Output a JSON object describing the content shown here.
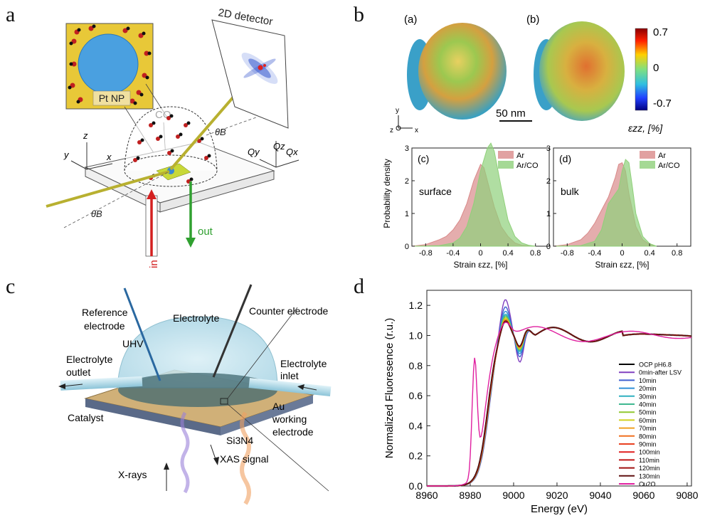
{
  "panels": {
    "a": {
      "letter": "a",
      "labels": {
        "detector": "2D detector",
        "pt_np": "Pt NP",
        "co": "CO",
        "in": "in",
        "out": "out",
        "theta_b": "θB",
        "y": "y",
        "z": "z",
        "x": "x",
        "qy": "Qy",
        "qz": "Qz",
        "qx": "Qx"
      }
    },
    "b": {
      "letter": "b",
      "sub_a": "(a)",
      "sub_b": "(b)",
      "colorbar": {
        "max": "0.7",
        "mid": "0",
        "min": "-0.7",
        "label": "εzz, [%]"
      },
      "scale_bar": "50 nm",
      "axes": {
        "y": "y",
        "z": "z",
        "x": "x"
      },
      "ylabel": "Probability density",
      "xlabel": "Strain εzz, [%]"
    },
    "c": {
      "letter": "c",
      "labels": {
        "reference": "Reference",
        "electrode": "electrode",
        "electrolyte": "Electrolyte",
        "counter": "Counter electrode",
        "uhv": "UHV",
        "electrolyte_outlet_1": "Electrolyte",
        "electrolyte_outlet_2": "outlet",
        "electrolyte_inlet_1": "Electrolyte",
        "electrolyte_inlet_2": "inlet",
        "catalyst": "Catalyst",
        "au_1": "Au",
        "au_2": "working",
        "au_3": "electrode",
        "si3n4": "Si3N4",
        "xrays": "X-rays",
        "xas": "XAS signal"
      }
    },
    "d": {
      "letter": "d"
    }
  },
  "colors": {
    "ar": "#d98a8a",
    "arco": "#8fd07a",
    "beam": "#b8b030",
    "in_arrow": "#d42020",
    "out_arrow": "#30a030"
  },
  "chart_data": [
    {
      "type": "area",
      "panel": "b(c)",
      "subtitle": "(c)",
      "annotation": "surface",
      "xlabel": "Strain εzz, [%]",
      "ylabel": "Probability density",
      "xlim": [
        -1.0,
        1.0
      ],
      "ylim": [
        0,
        3
      ],
      "xticks": [
        -0.8,
        -0.4,
        0,
        0.4,
        0.8
      ],
      "xtick_labels": [
        "-0.8",
        "-0.4",
        "0",
        "0.4",
        "0.8"
      ],
      "yticks": [
        0,
        1,
        2,
        3
      ],
      "legend": "top-right",
      "series": [
        {
          "name": "Ar",
          "color": "#d98a8a",
          "x": [
            -1.0,
            -0.8,
            -0.6,
            -0.5,
            -0.4,
            -0.3,
            -0.2,
            -0.1,
            0.0,
            0.05,
            0.1,
            0.2,
            0.3,
            0.4,
            0.5,
            0.6,
            0.8
          ],
          "y": [
            0,
            0.05,
            0.2,
            0.3,
            0.5,
            0.8,
            1.3,
            2.0,
            2.5,
            2.4,
            2.0,
            1.2,
            0.6,
            0.3,
            0.1,
            0.03,
            0
          ]
        },
        {
          "name": "Ar/CO",
          "color": "#8fd07a",
          "x": [
            -1.0,
            -0.6,
            -0.4,
            -0.3,
            -0.2,
            -0.1,
            0.0,
            0.1,
            0.15,
            0.2,
            0.3,
            0.4,
            0.5,
            0.6,
            0.7,
            0.8
          ],
          "y": [
            0,
            0.02,
            0.1,
            0.25,
            0.6,
            1.3,
            2.3,
            3.0,
            3.15,
            2.9,
            1.8,
            0.8,
            0.3,
            0.1,
            0.03,
            0
          ]
        }
      ]
    },
    {
      "type": "area",
      "panel": "b(d)",
      "subtitle": "(d)",
      "annotation": "bulk",
      "xlabel": "Strain εzz, [%]",
      "xlim": [
        -1.0,
        1.0
      ],
      "ylim": [
        0,
        3
      ],
      "xticks": [
        -0.8,
        -0.4,
        0,
        0.4,
        0.8
      ],
      "xtick_labels": [
        "-0.8",
        "-0.4",
        "0",
        "0.4",
        "0.8"
      ],
      "yticks": [
        0,
        1,
        2,
        3
      ],
      "legend": "top-right",
      "series": [
        {
          "name": "Ar",
          "color": "#d98a8a",
          "x": [
            -1.0,
            -0.8,
            -0.6,
            -0.5,
            -0.4,
            -0.3,
            -0.2,
            -0.1,
            -0.05,
            0.0,
            0.05,
            0.1,
            0.2,
            0.3,
            0.4,
            0.5
          ],
          "y": [
            0,
            0.05,
            0.2,
            0.4,
            0.7,
            1.1,
            1.5,
            2.1,
            2.5,
            2.55,
            2.3,
            1.6,
            0.6,
            0.2,
            0.05,
            0
          ]
        },
        {
          "name": "Ar/CO",
          "color": "#8fd07a",
          "x": [
            -1.0,
            -0.6,
            -0.4,
            -0.3,
            -0.2,
            -0.1,
            -0.05,
            0.0,
            0.05,
            0.1,
            0.15,
            0.2,
            0.3,
            0.4,
            0.5
          ],
          "y": [
            0,
            0.02,
            0.15,
            0.5,
            1.3,
            1.6,
            1.75,
            2.3,
            2.65,
            2.55,
            1.8,
            1.0,
            0.3,
            0.08,
            0
          ]
        }
      ]
    },
    {
      "type": "line",
      "panel": "d",
      "xlabel": "Energy (eV)",
      "ylabel": "Normalized Fluoresence (r.u.)",
      "xlim": [
        8960,
        9082
      ],
      "ylim": [
        0,
        1.3
      ],
      "xticks": [
        8960,
        8980,
        9000,
        9020,
        9040,
        9060,
        9080
      ],
      "yticks": [
        0.0,
        0.2,
        0.4,
        0.6,
        0.8,
        1.0,
        1.2
      ],
      "ytick_labels": [
        "0.0",
        "0.2",
        "0.4",
        "0.6",
        "0.8",
        "1.0",
        "1.2"
      ],
      "legend": "bottom-right",
      "series": [
        {
          "name": "OCP pH6.8",
          "color": "#000000",
          "peak": 1.12,
          "edge_shift": 0
        },
        {
          "name": "0min-after LSV",
          "color": "#8040c0",
          "peak": 1.27,
          "edge_shift": 1.5
        },
        {
          "name": "10min",
          "color": "#4060d0",
          "peak": 1.22,
          "edge_shift": 1.2
        },
        {
          "name": "20min",
          "color": "#3090d8",
          "peak": 1.19,
          "edge_shift": 1.0
        },
        {
          "name": "30min",
          "color": "#30b0c0",
          "peak": 1.17,
          "edge_shift": 0.9
        },
        {
          "name": "40min",
          "color": "#40b890",
          "peak": 1.16,
          "edge_shift": 0.8
        },
        {
          "name": "50min",
          "color": "#90c830",
          "peak": 1.15,
          "edge_shift": 0.7
        },
        {
          "name": "60min",
          "color": "#d0d020",
          "peak": 1.14,
          "edge_shift": 0.6
        },
        {
          "name": "70min",
          "color": "#f0a020",
          "peak": 1.13,
          "edge_shift": 0.5
        },
        {
          "name": "80min",
          "color": "#f07020",
          "peak": 1.13,
          "edge_shift": 0.4
        },
        {
          "name": "90min",
          "color": "#e84020",
          "peak": 1.12,
          "edge_shift": 0.3
        },
        {
          "name": "100min",
          "color": "#e02020",
          "peak": 1.12,
          "edge_shift": 0.2
        },
        {
          "name": "110min",
          "color": "#c01818",
          "peak": 1.12,
          "edge_shift": 0.1
        },
        {
          "name": "120min",
          "color": "#a01010",
          "peak": 1.12,
          "edge_shift": 0.05
        },
        {
          "name": "130min",
          "color": "#601010",
          "peak": 1.12,
          "edge_shift": 0
        },
        {
          "name": "Cu2O",
          "color": "#e020a0",
          "peak": 1.08,
          "edge_shift": -3
        }
      ]
    }
  ]
}
